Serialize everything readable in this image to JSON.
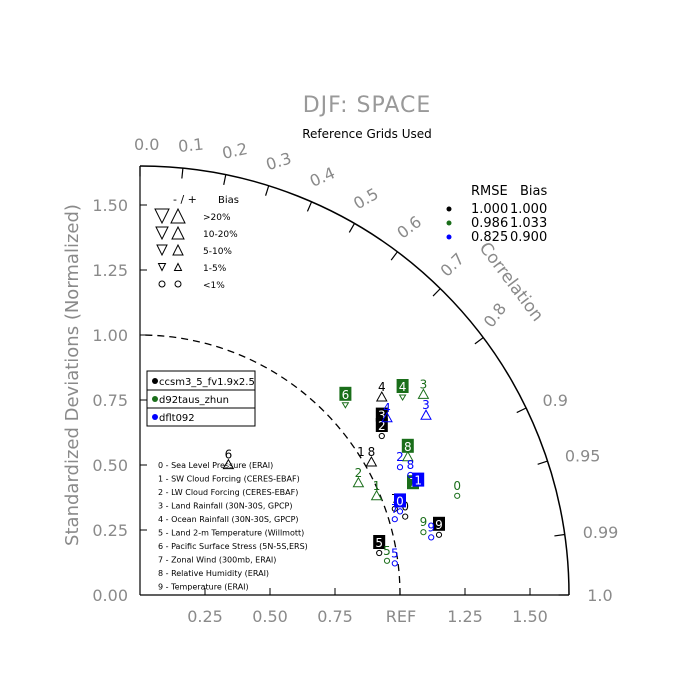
{
  "chart_data": {
    "type": "scatter",
    "title": "DJF: SPACE",
    "subtitle": "Reference Grids Used",
    "ylabel": "Standardized Deviations (Normalized)",
    "arc_label": "Correlation",
    "ref_label": "REF",
    "std_ticks": [
      "0.00",
      "0.25",
      "0.50",
      "0.75",
      "1.00",
      "1.25",
      "1.50"
    ],
    "x_ticks": [
      "0.25",
      "0.50",
      "0.75",
      "1.25",
      "1.50"
    ],
    "corr_ticks": [
      "0.0",
      "0.1",
      "0.2",
      "0.3",
      "0.4",
      "0.5",
      "0.6",
      "0.7",
      "0.8",
      "0.9",
      "0.95",
      "0.99",
      "1.0"
    ],
    "bias_legend": {
      "header": "- / +",
      "col": "Bias",
      "rows": [
        ">20%",
        "10-20%",
        "5-10%",
        "1-5%",
        "<1%"
      ]
    },
    "rmse_legend": {
      "header_rmse": "RMSE",
      "header_bias": "Bias",
      "rows": [
        {
          "rmse": "1.000",
          "bias": "1.000",
          "color": "#000000"
        },
        {
          "rmse": "0.986",
          "bias": "1.033",
          "color": "#1a6e1a"
        },
        {
          "rmse": "0.825",
          "bias": "0.900",
          "color": "#0000ff"
        }
      ]
    },
    "series": [
      {
        "name": "ccsm3_5_fv1.9x2.5",
        "color": "#000000"
      },
      {
        "name": "d92taus_zhun",
        "color": "#1a6e1a"
      },
      {
        "name": "dflt092",
        "color": "#0000ff"
      }
    ],
    "variables": [
      "0 - Sea Level Pressure (ERAI)",
      "1 - SW Cloud Forcing (CERES-EBAF)",
      "2 - LW Cloud Forcing (CERES-EBAF)",
      "3 - Land Rainfall (30N-30S, GPCP)",
      "4 - Ocean Rainfall (30N-30S, GPCP)",
      "5 - Land 2-m Temperature (Willmott)",
      "6 - Pacific Surface Stress (5N-5S,ERS)",
      "7 - Zonal Wind (300mb, ERAI)",
      "8 - Relative Humidity (ERAI)",
      "9 - Temperature (ERAI)"
    ],
    "points": [
      {
        "label": "6",
        "x": 0.34,
        "y": 0.54,
        "series": 0,
        "boxed": false,
        "marker": "up"
      },
      {
        "label": "4",
        "x": 0.93,
        "y": 0.8,
        "series": 0,
        "boxed": false,
        "marker": "up"
      },
      {
        "label": "3",
        "x": 0.93,
        "y": 0.69,
        "series": 0,
        "boxed": true,
        "marker": "none"
      },
      {
        "label": "2",
        "x": 0.93,
        "y": 0.65,
        "series": 0,
        "boxed": true,
        "marker": "circle"
      },
      {
        "label": "1",
        "x": 0.85,
        "y": 0.55,
        "series": 0,
        "boxed": false,
        "marker": "none"
      },
      {
        "label": "8",
        "x": 0.89,
        "y": 0.55,
        "series": 0,
        "boxed": false,
        "marker": "up"
      },
      {
        "label": "7",
        "x": 0.98,
        "y": 0.37,
        "series": 0,
        "boxed": false,
        "marker": "circle"
      },
      {
        "label": "0",
        "x": 1.02,
        "y": 0.34,
        "series": 0,
        "boxed": false,
        "marker": "circle"
      },
      {
        "label": "9",
        "x": 1.15,
        "y": 0.27,
        "series": 0,
        "boxed": true,
        "marker": "circle"
      },
      {
        "label": "5",
        "x": 0.92,
        "y": 0.2,
        "series": 0,
        "boxed": true,
        "marker": "circle"
      },
      {
        "label": "6",
        "x": 0.79,
        "y": 0.77,
        "series": 1,
        "boxed": true,
        "marker": "down"
      },
      {
        "label": "4",
        "x": 1.01,
        "y": 0.8,
        "series": 1,
        "boxed": true,
        "marker": "down"
      },
      {
        "label": "3",
        "x": 1.09,
        "y": 0.81,
        "series": 1,
        "boxed": false,
        "marker": "up"
      },
      {
        "label": "8",
        "x": 1.03,
        "y": 0.57,
        "series": 1,
        "boxed": true,
        "marker": "up"
      },
      {
        "label": "2",
        "x": 0.84,
        "y": 0.47,
        "series": 1,
        "boxed": false,
        "marker": "up"
      },
      {
        "label": "1",
        "x": 0.91,
        "y": 0.42,
        "series": 1,
        "boxed": false,
        "marker": "up"
      },
      {
        "label": "7",
        "x": 1.05,
        "y": 0.43,
        "series": 1,
        "boxed": true,
        "marker": "none"
      },
      {
        "label": "0",
        "x": 1.22,
        "y": 0.42,
        "series": 1,
        "boxed": false,
        "marker": "circle"
      },
      {
        "label": "9",
        "x": 1.09,
        "y": 0.28,
        "series": 1,
        "boxed": false,
        "marker": "circle"
      },
      {
        "label": "5",
        "x": 0.95,
        "y": 0.17,
        "series": 1,
        "boxed": false,
        "marker": "circle"
      },
      {
        "label": "4",
        "x": 0.95,
        "y": 0.72,
        "series": 2,
        "boxed": false,
        "marker": "up"
      },
      {
        "label": "3",
        "x": 1.1,
        "y": 0.73,
        "series": 2,
        "boxed": false,
        "marker": "up"
      },
      {
        "label": "2",
        "x": 1.0,
        "y": 0.53,
        "series": 2,
        "boxed": false,
        "marker": "circle"
      },
      {
        "label": "8",
        "x": 1.04,
        "y": 0.5,
        "series": 2,
        "boxed": false,
        "marker": "circle"
      },
      {
        "label": "1",
        "x": 1.07,
        "y": 0.44,
        "series": 2,
        "boxed": true,
        "marker": "none"
      },
      {
        "label": "0",
        "x": 1.0,
        "y": 0.36,
        "series": 2,
        "boxed": true,
        "marker": "circle"
      },
      {
        "label": "7",
        "x": 0.98,
        "y": 0.33,
        "series": 2,
        "boxed": false,
        "marker": "circle"
      },
      {
        "label": "9",
        "x": 1.12,
        "y": 0.26,
        "series": 2,
        "boxed": false,
        "marker": "circle"
      },
      {
        "label": "5",
        "x": 0.98,
        "y": 0.16,
        "series": 2,
        "boxed": false,
        "marker": "circle"
      }
    ]
  }
}
